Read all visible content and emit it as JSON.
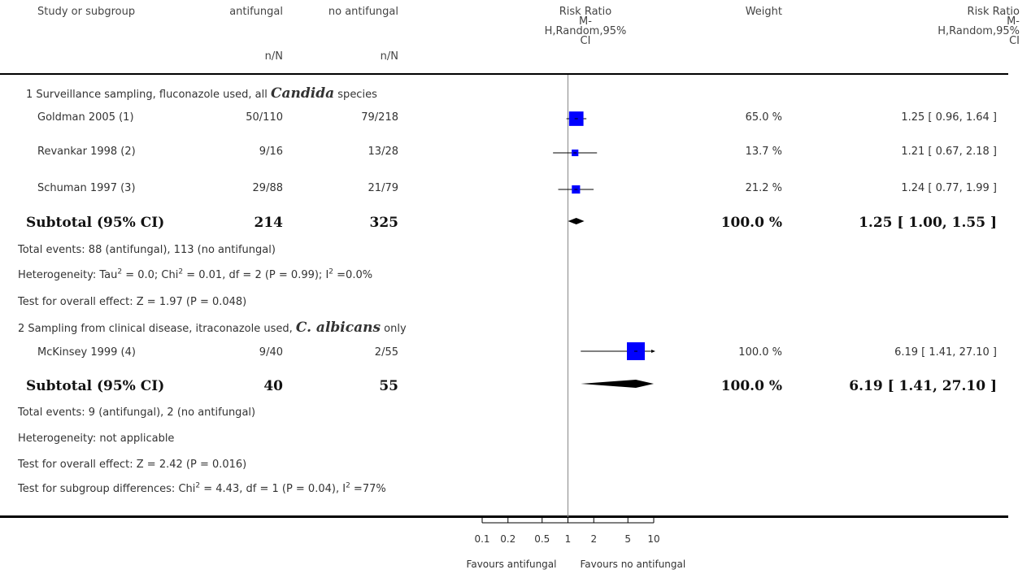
{
  "headers": {
    "study": "Study or subgroup",
    "group1": "antifungal",
    "group2": "no antifungal",
    "nN1": "n/N",
    "nN2": "n/N",
    "rr_plot": [
      "Risk Ratio",
      "M-",
      "H,Random,95%",
      "CI"
    ],
    "weight": "Weight",
    "rr_text": [
      "Risk Ratio",
      "M-",
      "H,Random,95%",
      "CI"
    ]
  },
  "groups": [
    {
      "title_pre": "1 Surveillance sampling, fluconazole used, all ",
      "title_em": "Candida",
      "title_post": " species",
      "studies": [
        {
          "name": "Goldman 2005 (1)",
          "n1": "50/110",
          "n2": "79/218",
          "weight": "65.0 %",
          "ci": "1.25 [ 0.96, 1.64 ]"
        },
        {
          "name": "Revankar 1998 (2)",
          "n1": "9/16",
          "n2": "13/28",
          "weight": "13.7 %",
          "ci": "1.21 [ 0.67, 2.18 ]"
        },
        {
          "name": "Schuman 1997 (3)",
          "n1": "29/88",
          "n2": "21/79",
          "weight": "21.2 %",
          "ci": "1.24 [ 0.77, 1.99 ]"
        }
      ],
      "subtotal": {
        "label": "Subtotal (95% CI)",
        "n1": "214",
        "n2": "325",
        "weight": "100.0 %",
        "ci": "1.25 [ 1.00, 1.55 ]"
      },
      "events": "Total events: 88 (antifungal), 113 (no antifungal)",
      "het_a": "Heterogeneity: Tau",
      "het_b": " = 0.0; Chi",
      "het_c": " = 0.01, df = 2 (P = 0.99); I",
      "het_d": " =0.0%",
      "overall": "Test for overall effect: Z = 1.97 (P = 0.048)"
    },
    {
      "title_pre": "2 Sampling from clinical disease, itraconazole used, ",
      "title_em": "C. albicans",
      "title_post": " only",
      "studies": [
        {
          "name": "McKinsey 1999 (4)",
          "n1": "9/40",
          "n2": "2/55",
          "weight": "100.0 %",
          "ci": "6.19 [ 1.41, 27.10 ]"
        }
      ],
      "subtotal": {
        "label": "Subtotal (95% CI)",
        "n1": "40",
        "n2": "55",
        "weight": "100.0 %",
        "ci": "6.19 [ 1.41, 27.10 ]"
      },
      "events": "Total events: 9 (antifungal), 2 (no antifungal)",
      "het": "Heterogeneity: not applicable",
      "overall": "Test for overall effect: Z = 2.42 (P = 0.016)"
    }
  ],
  "subgroup_diff_a": "Test for subgroup differences: Chi",
  "subgroup_diff_b": " = 4.43, df = 1 (P = 0.04), I",
  "subgroup_diff_c": " =77%",
  "sup2": "2",
  "chart_data": {
    "type": "forest",
    "scale": "log",
    "xlim": [
      0.1,
      10
    ],
    "ticks": [
      0.1,
      0.2,
      0.5,
      1,
      2,
      5,
      10
    ],
    "tick_labels": [
      "0.1",
      "0.2",
      "0.5",
      "1",
      "2",
      "5",
      "10"
    ],
    "favours_left": "Favours antifungal",
    "favours_right": "Favours no antifungal",
    "studies": [
      {
        "name": "Goldman 2005 (1)",
        "rr": 1.25,
        "lo": 0.96,
        "hi": 1.64,
        "weight": 65.0
      },
      {
        "name": "Revankar 1998 (2)",
        "rr": 1.21,
        "lo": 0.67,
        "hi": 2.18,
        "weight": 13.7
      },
      {
        "name": "Schuman 1997 (3)",
        "rr": 1.24,
        "lo": 0.77,
        "hi": 1.99,
        "weight": 21.2
      },
      {
        "name": "McKinsey 1999 (4)",
        "rr": 6.19,
        "lo": 1.41,
        "hi": 27.1,
        "weight": 100.0
      }
    ],
    "subtotals": [
      {
        "rr": 1.25,
        "lo": 1.0,
        "hi": 1.55
      },
      {
        "rr": 6.19,
        "lo": 1.41,
        "hi": 27.1
      }
    ],
    "colors": {
      "box": "#0000ff",
      "diamond": "#000000",
      "line": "#000000",
      "axis": "#888888"
    }
  }
}
